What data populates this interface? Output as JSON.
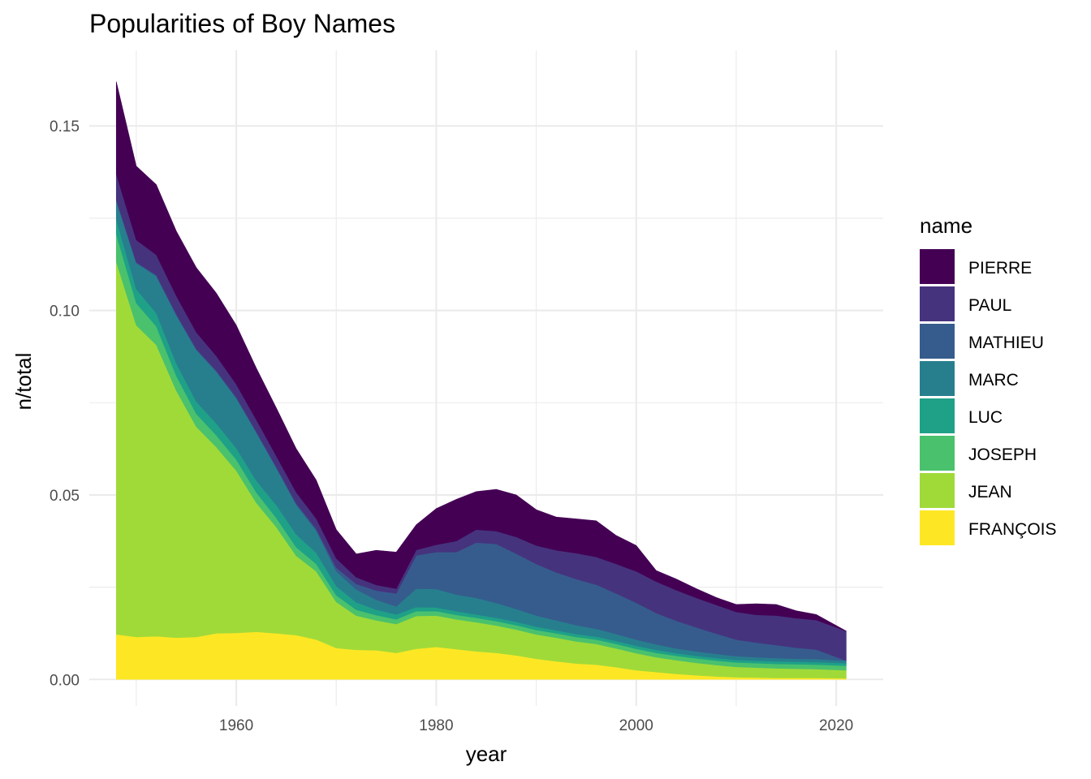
{
  "chart_data": {
    "type": "area",
    "stacked": true,
    "title": "Popularities of Boy Names",
    "xlabel": "year",
    "ylabel": "n/total",
    "xlim": [
      1945.3,
      2024.7
    ],
    "ylim": [
      -0.0072,
      0.1705
    ],
    "x_ticks": [
      1960,
      1980,
      2000,
      2020
    ],
    "y_ticks": [
      0.0,
      0.05,
      0.1,
      0.15
    ],
    "y_tick_labels": [
      "0.00",
      "0.05",
      "0.10",
      "0.15"
    ],
    "grid": true,
    "legend": {
      "title": "name",
      "position": "right"
    },
    "x": [
      1948,
      1950,
      1952,
      1954,
      1956,
      1958,
      1960,
      1962,
      1964,
      1966,
      1968,
      1970,
      1972,
      1974,
      1976,
      1978,
      1980,
      1982,
      1984,
      1986,
      1988,
      1990,
      1992,
      1994,
      1996,
      1998,
      2000,
      2002,
      2004,
      2006,
      2008,
      2010,
      2012,
      2014,
      2016,
      2018,
      2021
    ],
    "series": [
      {
        "name": "FRANÇOIS",
        "color": "#fde725",
        "values": [
          0.0122,
          0.0115,
          0.0117,
          0.0113,
          0.0115,
          0.0125,
          0.0126,
          0.0129,
          0.0125,
          0.012,
          0.0108,
          0.0085,
          0.008,
          0.0079,
          0.0072,
          0.0083,
          0.0088,
          0.0082,
          0.0076,
          0.0072,
          0.0065,
          0.0056,
          0.0049,
          0.0043,
          0.004,
          0.0033,
          0.0025,
          0.002,
          0.0015,
          0.0011,
          0.0008,
          0.0006,
          0.0005,
          0.0004,
          0.0004,
          0.0004,
          0.0003
        ]
      },
      {
        "name": "JEAN",
        "color": "#a0da39",
        "values": [
          0.101,
          0.0845,
          0.079,
          0.067,
          0.057,
          0.0505,
          0.044,
          0.035,
          0.0288,
          0.0215,
          0.0185,
          0.0125,
          0.0093,
          0.0081,
          0.0078,
          0.0089,
          0.0085,
          0.0081,
          0.0079,
          0.0074,
          0.007,
          0.0066,
          0.0064,
          0.006,
          0.0056,
          0.0051,
          0.0046,
          0.004,
          0.0037,
          0.0034,
          0.0031,
          0.0028,
          0.0027,
          0.0026,
          0.0025,
          0.0024,
          0.0022
        ]
      },
      {
        "name": "JOSEPH",
        "color": "#4ac16d",
        "values": [
          0.0075,
          0.006,
          0.005,
          0.004,
          0.0035,
          0.0032,
          0.003,
          0.0028,
          0.0025,
          0.0023,
          0.002,
          0.0018,
          0.0016,
          0.0014,
          0.0013,
          0.0013,
          0.0012,
          0.0012,
          0.0012,
          0.0012,
          0.0012,
          0.0012,
          0.0012,
          0.0012,
          0.0012,
          0.0012,
          0.0012,
          0.0012,
          0.0012,
          0.0012,
          0.0012,
          0.0012,
          0.0012,
          0.0012,
          0.0012,
          0.0012,
          0.0012
        ]
      },
      {
        "name": "LUC",
        "color": "#1fa187",
        "values": [
          0.004,
          0.0038,
          0.0036,
          0.0034,
          0.0033,
          0.0032,
          0.0031,
          0.0032,
          0.0035,
          0.0035,
          0.003,
          0.0025,
          0.002,
          0.0015,
          0.0013,
          0.0011,
          0.001,
          0.001,
          0.0009,
          0.0009,
          0.0009,
          0.0009,
          0.0008,
          0.0008,
          0.0008,
          0.0008,
          0.0008,
          0.0008,
          0.0007,
          0.0007,
          0.0007,
          0.0007,
          0.0007,
          0.0007,
          0.0007,
          0.0007,
          0.0007
        ]
      },
      {
        "name": "MARC",
        "color": "#277f8e",
        "values": [
          0.005,
          0.007,
          0.01,
          0.013,
          0.014,
          0.014,
          0.0135,
          0.013,
          0.01,
          0.008,
          0.006,
          0.004,
          0.0035,
          0.0027,
          0.0022,
          0.005,
          0.005,
          0.0045,
          0.0045,
          0.004,
          0.0035,
          0.003,
          0.0027,
          0.0024,
          0.0021,
          0.0019,
          0.0017,
          0.0015,
          0.0013,
          0.0012,
          0.0011,
          0.001,
          0.0009,
          0.0009,
          0.0008,
          0.0008,
          0.0007
        ]
      },
      {
        "name": "MATHIEU",
        "color": "#365c8d",
        "values": [
          0.0003,
          0.0003,
          0.0003,
          0.0003,
          0.0003,
          0.0003,
          0.0003,
          0.0003,
          0.0003,
          0.0004,
          0.0005,
          0.001,
          0.0015,
          0.0025,
          0.0035,
          0.009,
          0.01,
          0.0115,
          0.015,
          0.016,
          0.015,
          0.014,
          0.013,
          0.0125,
          0.012,
          0.011,
          0.01,
          0.0085,
          0.0075,
          0.0065,
          0.0055,
          0.0045,
          0.004,
          0.0035,
          0.003,
          0.0026,
          0.0
        ]
      },
      {
        "name": "PAUL",
        "color": "#46337e",
        "values": [
          0.007,
          0.006,
          0.0055,
          0.005,
          0.0045,
          0.004,
          0.0035,
          0.0032,
          0.003,
          0.003,
          0.0028,
          0.0025,
          0.0018,
          0.0015,
          0.0013,
          0.0015,
          0.002,
          0.003,
          0.0035,
          0.0035,
          0.0045,
          0.005,
          0.006,
          0.007,
          0.0075,
          0.008,
          0.0085,
          0.0085,
          0.0083,
          0.008,
          0.0078,
          0.0075,
          0.0075,
          0.008,
          0.008,
          0.008,
          0.008
        ]
      },
      {
        "name": "PIERRE",
        "color": "#440154",
        "values": [
          0.025,
          0.02,
          0.019,
          0.0175,
          0.0175,
          0.017,
          0.016,
          0.014,
          0.013,
          0.0118,
          0.0104,
          0.0078,
          0.0063,
          0.0094,
          0.0099,
          0.0068,
          0.0098,
          0.0113,
          0.0103,
          0.0113,
          0.0114,
          0.0097,
          0.009,
          0.0093,
          0.0098,
          0.0077,
          0.007,
          0.003,
          0.003,
          0.0025,
          0.002,
          0.002,
          0.003,
          0.003,
          0.002,
          0.0015,
          0.0
        ]
      }
    ],
    "legend_order": [
      "PIERRE",
      "PAUL",
      "MATHIEU",
      "MARC",
      "LUC",
      "JOSEPH",
      "JEAN",
      "FRANÇOIS"
    ]
  }
}
